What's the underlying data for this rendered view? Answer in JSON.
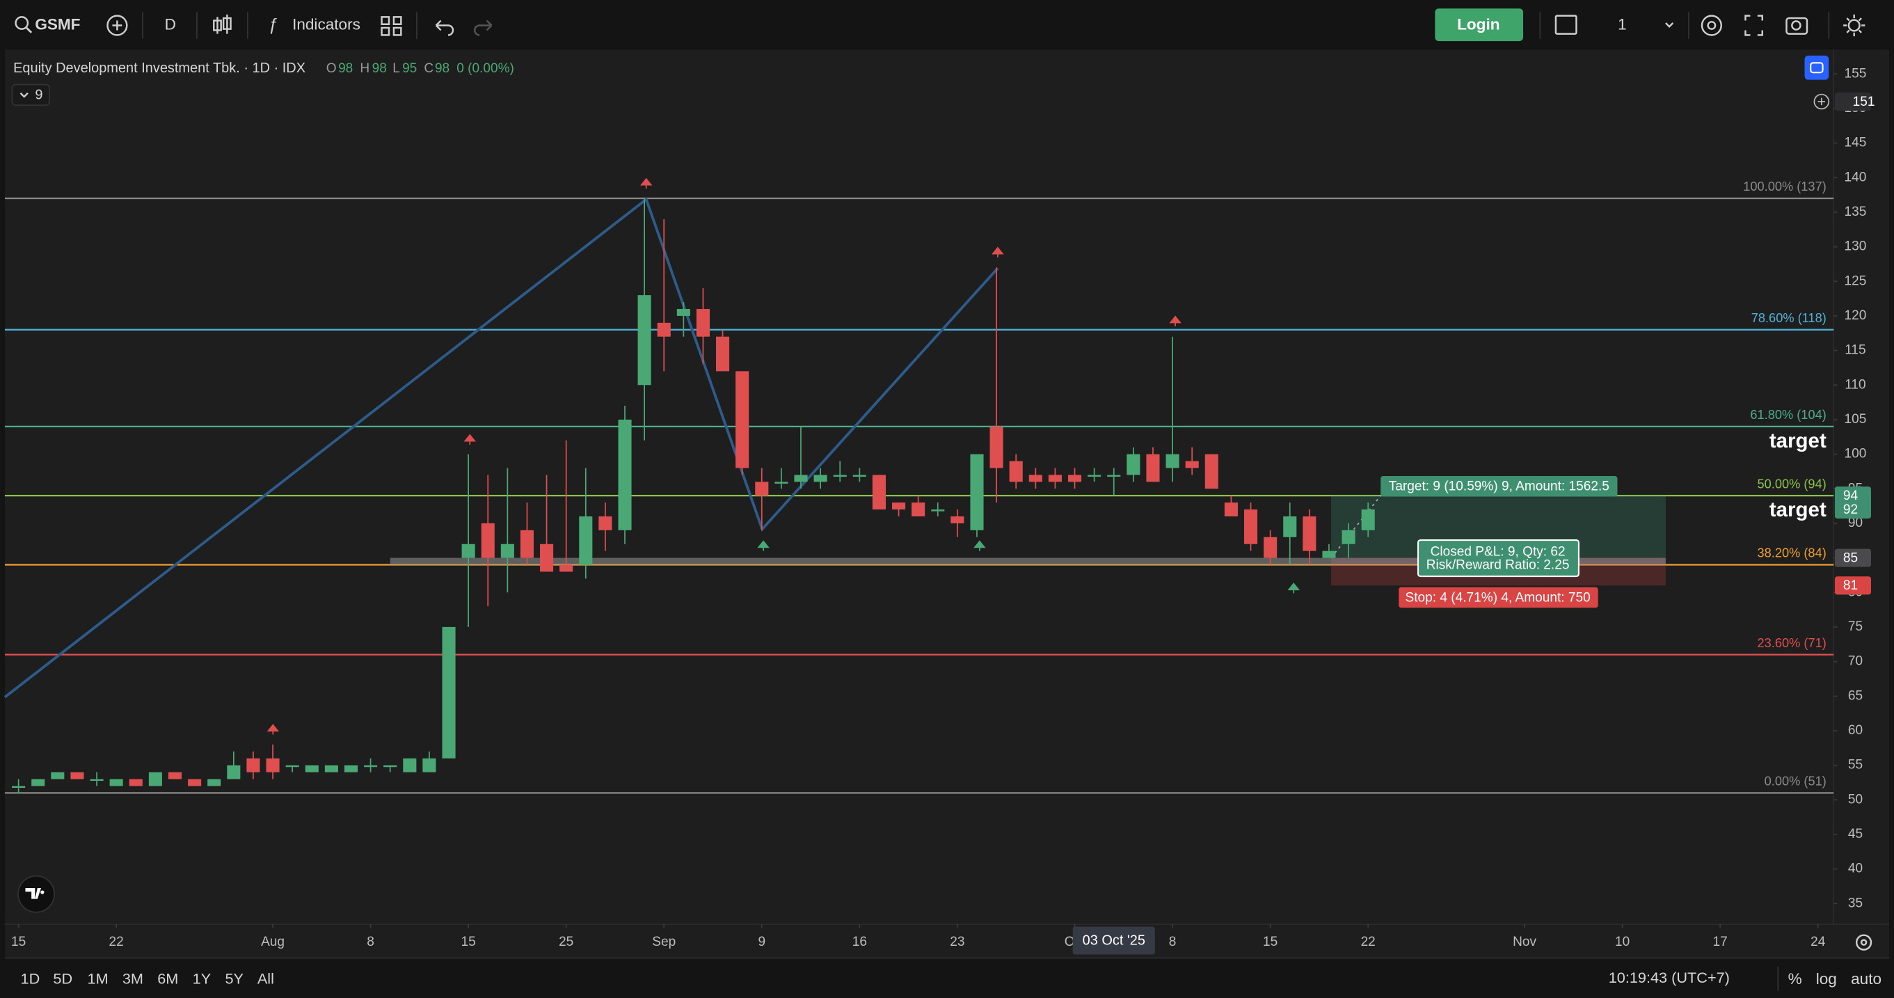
{
  "toolbar": {
    "symbol": "GSMF",
    "interval": "D",
    "indicators": "Indicators",
    "login": "Login",
    "layout_count": "1"
  },
  "legend": {
    "name": "Equity Development Investment Tbk. · 1D · IDX",
    "o_label": "O",
    "o": 98,
    "h_label": "H",
    "h": 98,
    "l_label": "L",
    "l": 95,
    "c_label": "C",
    "c": 98,
    "change": "0 (0.00%)",
    "indicator_count": 9
  },
  "chart_data": {
    "type": "candlestick",
    "up_color": "#4aa874",
    "down_color": "#e04f4f",
    "categories": [
      null,
      null,
      null,
      null,
      null,
      null,
      null,
      null,
      null,
      null,
      null,
      null,
      null,
      null,
      null,
      null,
      null,
      null,
      null,
      null,
      null,
      null,
      null,
      null,
      null,
      null,
      null,
      null,
      null,
      null,
      null,
      null,
      null,
      null,
      null,
      null,
      null,
      null,
      null,
      null,
      null,
      null,
      null,
      null,
      null,
      null,
      null,
      null,
      null,
      null,
      null,
      null,
      null,
      null,
      null,
      null,
      null,
      null,
      null,
      null,
      null,
      null,
      null,
      null,
      null,
      null,
      null,
      null,
      null,
      null
    ],
    "open": [
      52,
      52,
      53,
      54,
      53,
      52,
      53,
      52,
      54,
      53,
      52,
      53,
      56,
      56,
      55,
      54,
      54,
      54,
      55,
      55,
      54,
      54,
      56,
      85,
      90,
      85,
      89,
      87,
      84,
      84,
      91,
      89,
      110,
      119,
      120,
      121,
      117,
      112,
      96,
      96,
      96,
      96,
      97,
      97,
      97,
      93,
      93,
      92,
      91,
      89,
      104,
      99,
      97,
      97,
      97,
      97,
      97,
      97,
      100,
      98,
      99,
      100,
      93,
      92,
      88,
      88,
      91,
      85,
      87,
      89
    ],
    "high": [
      53,
      53,
      54,
      54,
      54,
      53,
      53,
      54,
      54,
      53,
      53,
      57,
      57,
      58,
      55,
      55,
      55,
      55,
      56,
      55,
      56,
      57,
      75,
      100,
      97,
      98,
      93,
      97,
      102,
      98,
      93,
      107,
      137,
      134,
      122,
      124,
      118,
      112,
      98,
      98,
      104,
      98,
      99,
      98,
      97,
      93,
      94,
      93,
      92,
      100,
      127,
      100,
      98,
      98,
      98,
      98,
      98,
      101,
      101,
      117,
      101,
      100,
      94,
      93,
      89,
      93,
      92,
      87,
      90,
      93
    ],
    "low": [
      51,
      52,
      53,
      53,
      52,
      52,
      52,
      52,
      53,
      52,
      52,
      53,
      53,
      53,
      54,
      54,
      54,
      54,
      54,
      54,
      54,
      54,
      56,
      75,
      78,
      80,
      84,
      83,
      83,
      82,
      86,
      87,
      102,
      112,
      117,
      113,
      112,
      97,
      89,
      95,
      95,
      95,
      96,
      96,
      92,
      91,
      91,
      91,
      88,
      88,
      93,
      95,
      95,
      95,
      95,
      96,
      94,
      96,
      96,
      96,
      97,
      95,
      91,
      86,
      84,
      84,
      84,
      85,
      85,
      88
    ],
    "close": [
      52,
      53,
      54,
      53,
      53,
      53,
      52,
      54,
      53,
      52,
      53,
      55,
      54,
      54,
      55,
      55,
      55,
      55,
      55,
      55,
      56,
      56,
      75,
      87,
      85,
      87,
      85,
      83,
      83,
      91,
      89,
      105,
      123,
      117,
      121,
      117,
      112,
      98,
      94,
      96,
      97,
      97,
      97,
      97,
      92,
      92,
      91,
      92,
      90,
      100,
      98,
      96,
      96,
      96,
      96,
      97,
      97,
      100,
      96,
      100,
      98,
      95,
      91,
      87,
      85,
      91,
      86,
      86,
      89,
      92
    ],
    "xlim": [
      -0.7,
      92.8
    ],
    "xticks": [
      {
        "value": 0,
        "label": "15"
      },
      {
        "value": 5,
        "label": "22"
      },
      {
        "value": 13,
        "label": "Aug"
      },
      {
        "value": 18,
        "label": "8"
      },
      {
        "value": 23,
        "label": "15"
      },
      {
        "value": 28,
        "label": "25"
      },
      {
        "value": 33,
        "label": "Sep"
      },
      {
        "value": 38,
        "label": "9"
      },
      {
        "value": 43,
        "label": "16"
      },
      {
        "value": 48,
        "label": "23"
      },
      {
        "value": 54,
        "label": "Oct"
      },
      {
        "value": 59,
        "label": "8"
      },
      {
        "value": 64,
        "label": "15"
      },
      {
        "value": 69,
        "label": "22"
      },
      {
        "value": 77,
        "label": "Nov"
      },
      {
        "value": 82,
        "label": "10"
      },
      {
        "value": 87,
        "label": "17"
      },
      {
        "value": 92,
        "label": "24"
      }
    ],
    "crosshair_x": {
      "value": 56,
      "label": "03 Oct '25"
    },
    "ylim": [
      32,
      158.7
    ],
    "yticks": [
      35,
      40,
      45,
      50,
      55,
      60,
      65,
      70,
      75,
      80,
      85,
      90,
      95,
      100,
      105,
      110,
      115,
      120,
      125,
      130,
      135,
      140,
      145,
      150,
      155
    ],
    "fib_levels": [
      {
        "value": 137,
        "label": "100.00% (137)",
        "color": "#8a8a8a"
      },
      {
        "value": 118,
        "label": "78.60% (118)",
        "color": "#4fb3d9"
      },
      {
        "value": 104,
        "label": "61.80% (104)",
        "color": "#4cae8b"
      },
      {
        "value": 94,
        "label": "50.00% (94)",
        "color": "#8bc34a"
      },
      {
        "value": 84,
        "label": "38.20% (84)",
        "color": "#f0a030"
      },
      {
        "value": 71,
        "label": "23.60% (71)",
        "color": "#e04f4f"
      },
      {
        "value": 51,
        "label": "0.00% (51)",
        "color": "#8a8a8a"
      }
    ],
    "price_tags": [
      {
        "value": 151,
        "color": "#2e2e30"
      },
      {
        "value": 94,
        "color": "#3e9070"
      },
      {
        "value": 92,
        "color": "#3e9070"
      },
      {
        "value": 85,
        "color": "#4a4a4c"
      },
      {
        "value": 81,
        "color": "#d94444"
      }
    ],
    "annotations": [
      "target",
      "target"
    ],
    "position": {
      "target": "Target: 9 (10.59%) 9, Amount: 1562.5",
      "pnl": "Closed P&L: 9, Qty: 62",
      "ratio": "Risk/Reward Ratio: 2.25",
      "stop": "Stop: 4 (4.71%) 4, Amount: 750"
    }
  },
  "footer": {
    "ranges": [
      "1D",
      "5D",
      "1M",
      "3M",
      "6M",
      "1Y",
      "5Y",
      "All"
    ],
    "time": "10:19:43 (UTC+7)",
    "percent": "%",
    "log": "log",
    "auto": "auto"
  }
}
